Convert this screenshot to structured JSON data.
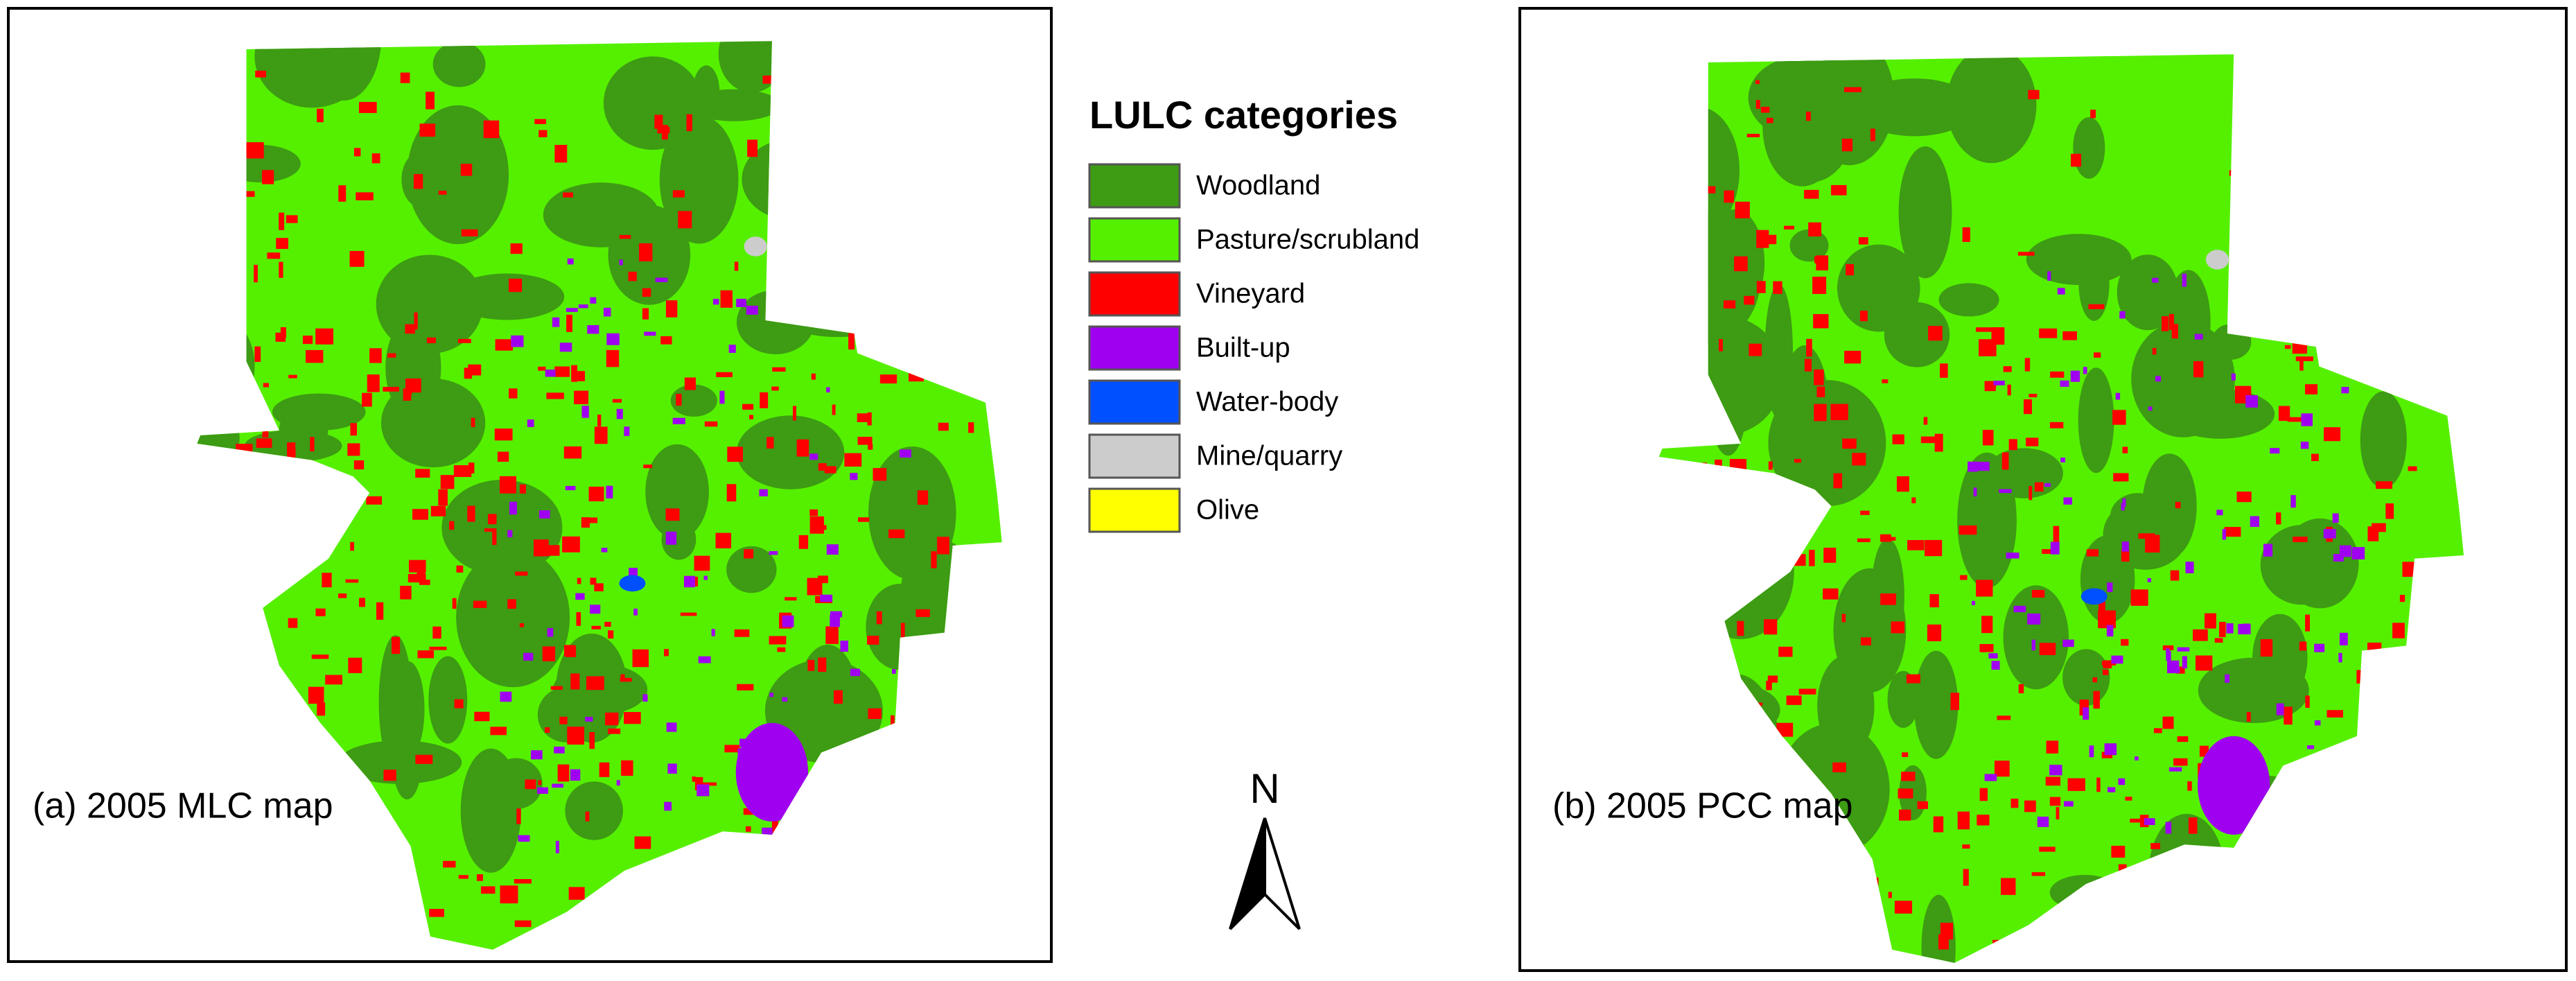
{
  "legend": {
    "title": "LULC categories",
    "items": [
      {
        "label": "Woodland",
        "color": "#3d9b14"
      },
      {
        "label": "Pasture/scrubland",
        "color": "#55f000"
      },
      {
        "label": "Vineyard",
        "color": "#ff0000"
      },
      {
        "label": "Built-up",
        "color": "#a000f0"
      },
      {
        "label": "Water-body",
        "color": "#0050ff"
      },
      {
        "label": "Mine/quarry",
        "color": "#cccccc"
      },
      {
        "label": "Olive",
        "color": "#ffff00"
      }
    ]
  },
  "panels": [
    {
      "label": "(a) 2005 MLC map"
    },
    {
      "label": "(b) 2005 PCC map"
    }
  ],
  "north_arrow": {
    "label": "N"
  }
}
